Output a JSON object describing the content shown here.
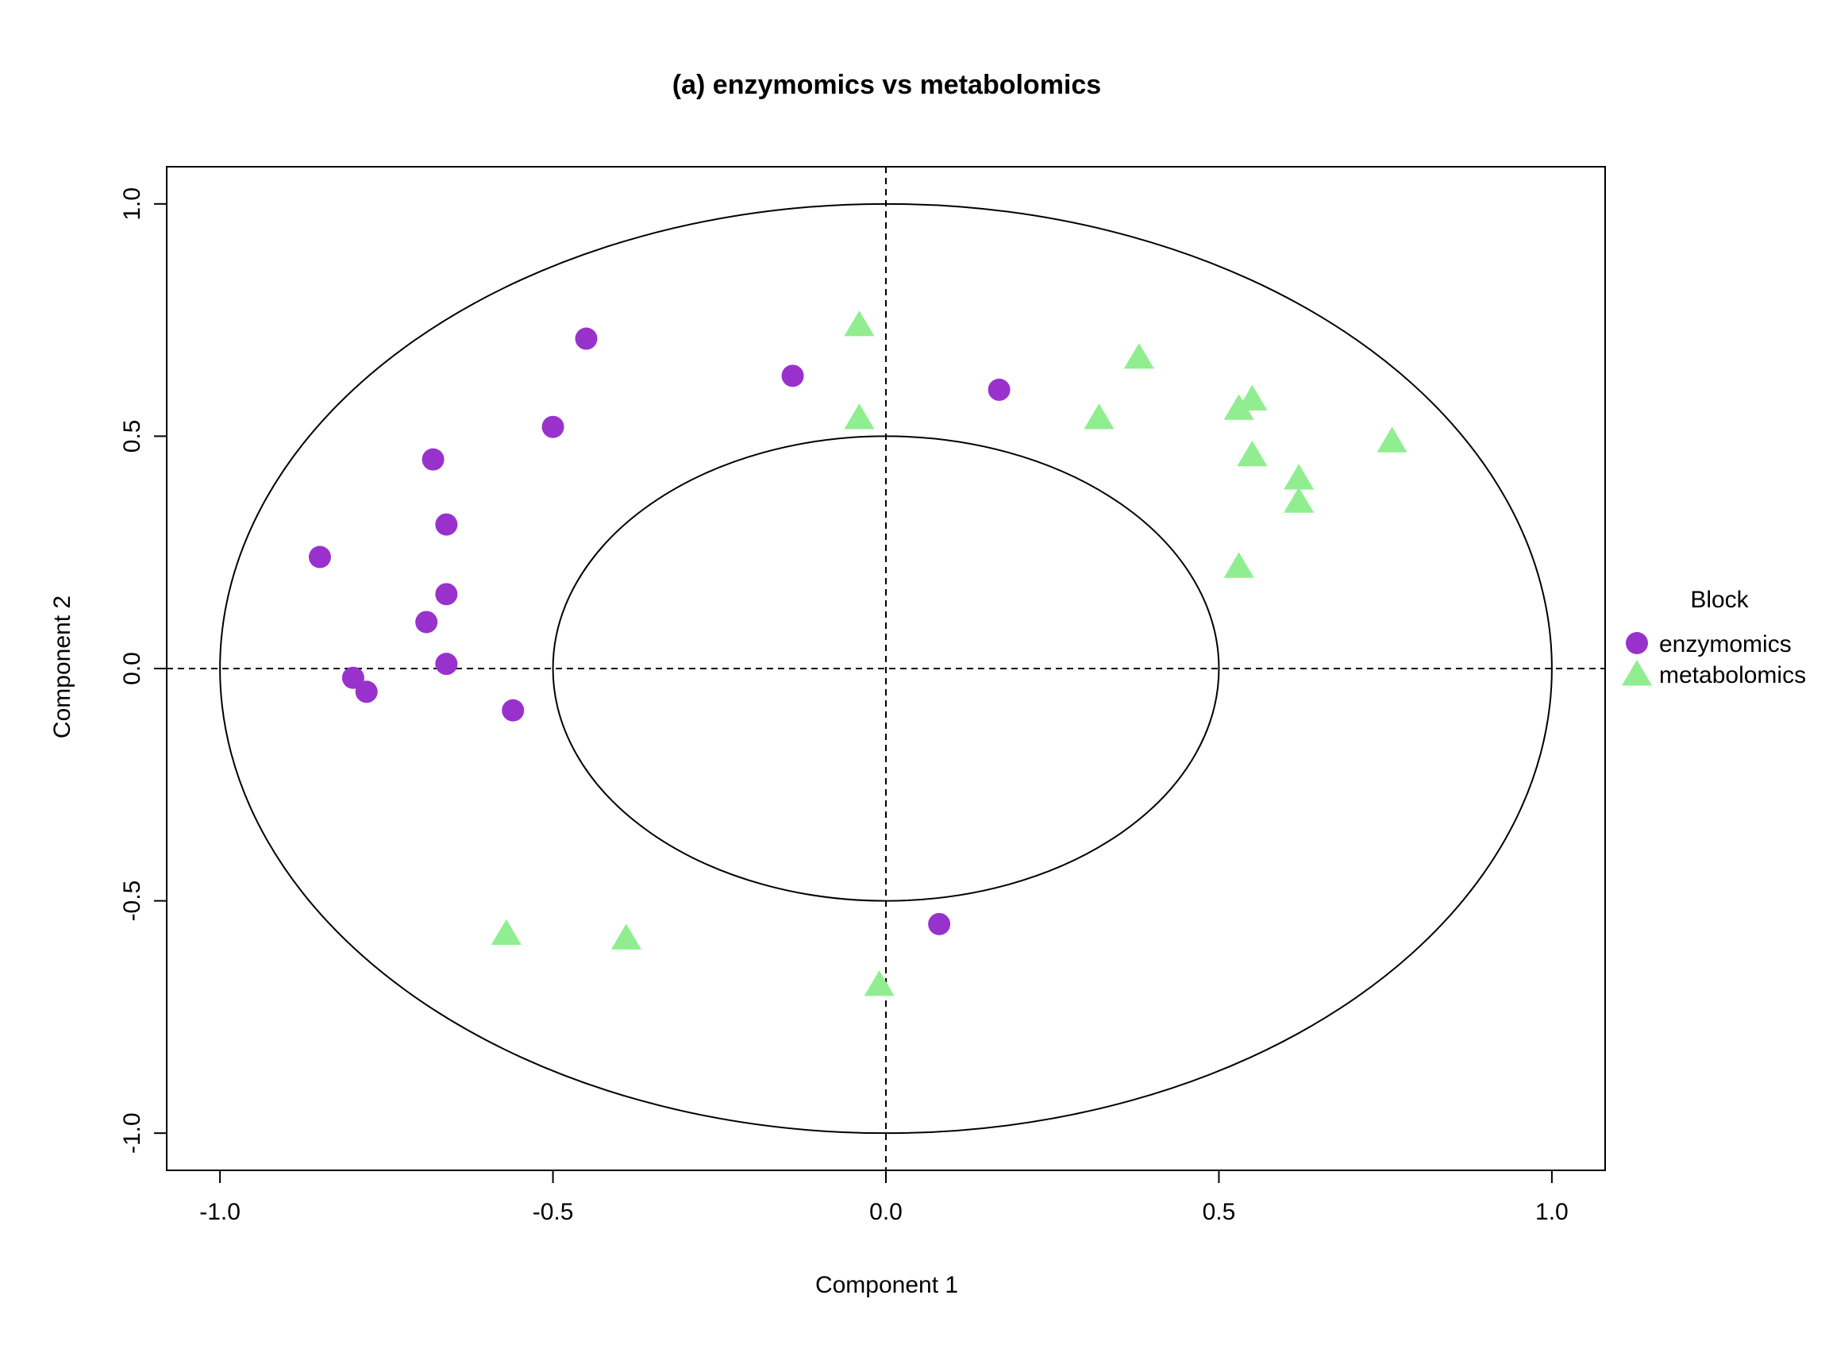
{
  "chart_data": {
    "type": "scatter",
    "title": "(a) enzymomics vs metabolomics",
    "xlabel": "Component  1",
    "ylabel": "Component  2",
    "xlim": [
      -1.08,
      1.08
    ],
    "ylim": [
      -1.08,
      1.08
    ],
    "xticks": [
      "-1.0",
      "-0.5",
      "0.0",
      "0.5",
      "1.0"
    ],
    "yticks": [
      "-1.0",
      "-0.5",
      "0.0",
      "0.5",
      "1.0"
    ],
    "grid": false,
    "reference_lines": {
      "x": 0,
      "y": 0,
      "style": "dashed"
    },
    "circles": [
      {
        "radius": 1.0
      },
      {
        "radius": 0.5
      }
    ],
    "legend": {
      "title": "Block",
      "placement": "right",
      "entries": [
        "enzymomics",
        "metabolomics"
      ]
    },
    "series": [
      {
        "name": "enzymomics",
        "marker": "circle",
        "color": "#9932CC",
        "points": [
          {
            "x": -0.85,
            "y": 0.24
          },
          {
            "x": -0.45,
            "y": 0.71
          },
          {
            "x": -0.5,
            "y": 0.52
          },
          {
            "x": -0.14,
            "y": 0.63
          },
          {
            "x": 0.17,
            "y": 0.6
          },
          {
            "x": -0.68,
            "y": 0.45
          },
          {
            "x": -0.66,
            "y": 0.31
          },
          {
            "x": -0.66,
            "y": 0.16
          },
          {
            "x": -0.69,
            "y": 0.1
          },
          {
            "x": -0.66,
            "y": 0.01
          },
          {
            "x": -0.8,
            "y": -0.02
          },
          {
            "x": -0.78,
            "y": -0.05
          },
          {
            "x": -0.56,
            "y": -0.09
          },
          {
            "x": 0.08,
            "y": -0.55
          }
        ]
      },
      {
        "name": "metabolomics",
        "marker": "triangle",
        "color": "#90EE90",
        "points": [
          {
            "x": -0.04,
            "y": 0.74
          },
          {
            "x": -0.04,
            "y": 0.54
          },
          {
            "x": 0.38,
            "y": 0.67
          },
          {
            "x": 0.32,
            "y": 0.54
          },
          {
            "x": 0.55,
            "y": 0.58
          },
          {
            "x": 0.53,
            "y": 0.56
          },
          {
            "x": 0.55,
            "y": 0.46
          },
          {
            "x": 0.76,
            "y": 0.49
          },
          {
            "x": 0.62,
            "y": 0.41
          },
          {
            "x": 0.62,
            "y": 0.36
          },
          {
            "x": 0.53,
            "y": 0.22
          },
          {
            "x": -0.57,
            "y": -0.57
          },
          {
            "x": -0.39,
            "y": -0.58
          },
          {
            "x": -0.01,
            "y": -0.68
          }
        ]
      }
    ]
  }
}
